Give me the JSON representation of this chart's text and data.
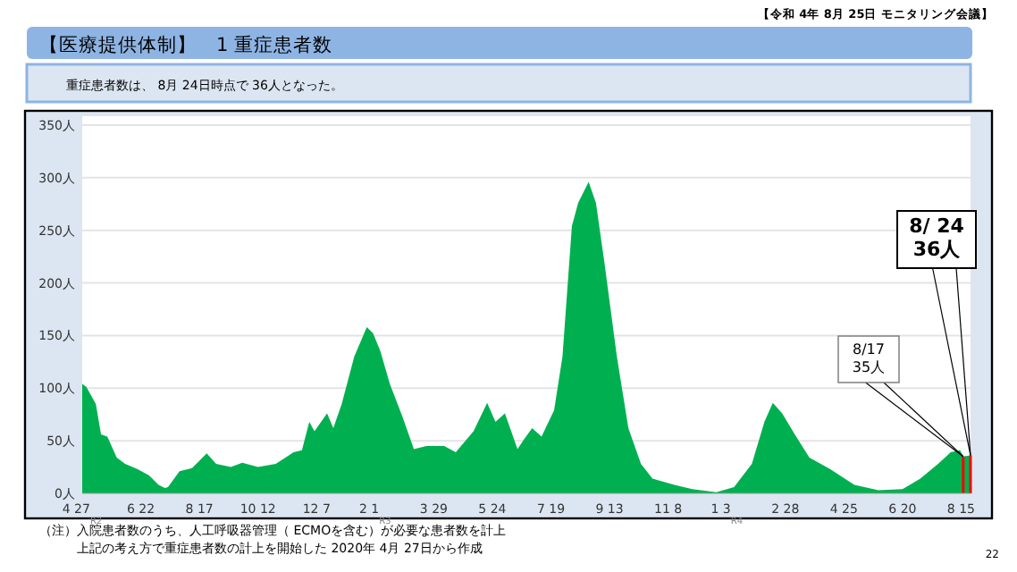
{
  "chart_data": {
    "type": "area",
    "title": "【医療提供体制】　1 重症患者数",
    "subtitle": "重症患者数は、 8月 24日時点で 36人となった。",
    "annotations": [
      "【令和 4年 8月 25日 モニタリング会議】",
      "（注）入院患者数のうち、人工呼吸器管理（ ECMOを含む）が必要な患者数を計上",
      "上記の考え方で重症患者数の計上を開始した 2020年 4月 27日から作成",
      "22",
      {
        "text": "8/17\n35人",
        "x": "2022-08-17",
        "y": 35
      },
      {
        "text": "8/ 24\n36人",
        "x": "2022-08-24",
        "y": 36
      }
    ],
    "x": [
      "2020-04-27",
      "2020-05-01",
      "2020-05-10",
      "2020-05-15",
      "2020-05-21",
      "2020-05-30",
      "2020-06-07",
      "2020-06-19",
      "2020-06-30",
      "2020-07-09",
      "2020-07-15",
      "2020-07-18",
      "2020-07-29",
      "2020-08-10",
      "2020-08-24",
      "2020-09-02",
      "2020-09-16",
      "2020-09-27",
      "2020-10-12",
      "2020-10-29",
      "2020-11-15",
      "2020-11-23",
      "2020-11-30",
      "2020-12-05",
      "2020-12-17",
      "2020-12-23",
      "2020-12-31",
      "2021-01-12",
      "2021-01-24",
      "2021-01-30",
      "2021-02-06",
      "2021-02-15",
      "2021-02-27",
      "2021-03-10",
      "2021-03-22",
      "2021-04-08",
      "2021-04-19",
      "2021-05-06",
      "2021-05-19",
      "2021-05-27",
      "2021-06-05",
      "2021-06-17",
      "2021-06-23",
      "2021-07-01",
      "2021-07-10",
      "2021-07-22",
      "2021-07-30",
      "2021-08-08",
      "2021-08-14",
      "2021-08-24",
      "2021-08-31",
      "2021-09-08",
      "2021-09-20",
      "2021-10-01",
      "2021-10-13",
      "2021-10-24",
      "2021-11-14",
      "2021-12-01",
      "2021-12-24",
      "2022-01-10",
      "2022-01-27",
      "2022-02-08",
      "2022-02-16",
      "2022-02-25",
      "2022-03-09",
      "2022-03-23",
      "2022-04-12",
      "2022-05-05",
      "2022-05-28",
      "2022-06-20",
      "2022-07-07",
      "2022-07-24",
      "2022-08-05",
      "2022-08-14",
      "2022-08-17",
      "2022-08-24"
    ],
    "series": [
      {
        "color": "#00b050",
        "values": [
          104,
          101,
          85,
          56,
          54,
          34,
          28,
          23,
          17,
          8,
          5,
          6,
          21,
          24,
          38,
          28,
          25,
          29,
          25,
          28,
          39,
          41,
          68,
          59,
          76,
          62,
          85,
          130,
          158,
          152,
          135,
          104,
          73,
          42,
          45,
          45,
          39,
          59,
          86,
          68,
          76,
          42,
          51,
          62,
          54,
          79,
          130,
          254,
          276,
          296,
          276,
          220,
          130,
          62,
          28,
          14,
          8,
          4,
          1,
          6,
          28,
          68,
          86,
          76,
          56,
          34,
          23,
          8,
          3,
          4,
          14,
          28,
          39,
          41,
          35,
          36
        ]
      }
    ],
    "xlim": [
      "2020-04-27",
      "2022-08-24"
    ],
    "xticks": [
      {
        "value": "2020-04-27",
        "label": "4 27$_{R2}$"
      },
      {
        "value": "2020-06-22",
        "label": "6 22"
      },
      {
        "value": "2020-08-17",
        "label": "8 17"
      },
      {
        "value": "2020-10-12",
        "label": "10 12"
      },
      {
        "value": "2020-12-07",
        "label": "12 7"
      },
      {
        "value": "2021-02-01",
        "label": "2 1$_{R3}$"
      },
      {
        "value": "2021-03-29",
        "label": "3 29"
      },
      {
        "value": "2021-05-24",
        "label": "5 24"
      },
      {
        "value": "2021-07-19",
        "label": "7 19"
      },
      {
        "value": "2021-09-13",
        "label": "9 13"
      },
      {
        "value": "2021-11-08",
        "label": "11 8"
      },
      {
        "value": "2022-01-03",
        "label": "1 3$_{R4}$"
      },
      {
        "value": "2022-02-28",
        "label": "2 28"
      },
      {
        "value": "2022-04-25",
        "label": "4 25"
      },
      {
        "value": "2022-06-20",
        "label": "6 20"
      },
      {
        "value": "2022-08-15",
        "label": "8 15"
      }
    ],
    "ylim": [
      0,
      350
    ],
    "yticks": [
      {
        "value": 0,
        "label": "0人"
      },
      {
        "value": 50,
        "label": "50人"
      },
      {
        "value": 100,
        "label": "100人"
      },
      {
        "value": 150,
        "label": "150人"
      },
      {
        "value": 200,
        "label": "200人"
      },
      {
        "value": 250,
        "label": "250人"
      },
      {
        "value": 300,
        "label": "300人"
      },
      {
        "value": 350,
        "label": "350人"
      }
    ],
    "ref_lines": [
      {
        "axis": "x",
        "value": "2022-08-17",
        "color": "#ff0000"
      },
      {
        "axis": "x",
        "value": "2022-08-24",
        "color": "#ff0000"
      }
    ],
    "grid": "y"
  }
}
